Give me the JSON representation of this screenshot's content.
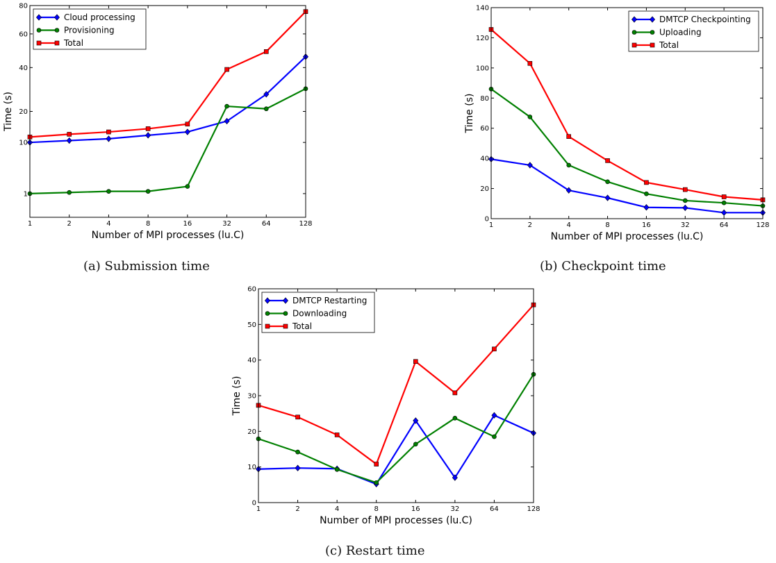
{
  "chart_data": [
    {
      "type": "line",
      "caption": "(a) Submission time",
      "xlabel": "Number of MPI processes (lu.C)",
      "ylabel": "Time (s)",
      "x_ticks": [
        "1",
        "2",
        "4",
        "8",
        "16",
        "32",
        "64",
        "128"
      ],
      "y_ticks": [
        1,
        10,
        20,
        40,
        60,
        80
      ],
      "y_scale": "sqrt",
      "ylim": [
        0,
        80
      ],
      "legend_position": "top-left",
      "series": [
        {
          "name": "Cloud processing",
          "color": "#0000ff",
          "marker": "diamond",
          "values": [
            10.0,
            10.5,
            11.0,
            12.0,
            13.0,
            16.5,
            27.0,
            46.0
          ]
        },
        {
          "name": "Provisioning",
          "color": "#008000",
          "marker": "circle",
          "values": [
            1.0,
            1.1,
            1.2,
            1.2,
            1.7,
            22.0,
            21.0,
            29.5
          ]
        },
        {
          "name": "Total",
          "color": "#ff0000",
          "marker": "square",
          "values": [
            11.5,
            12.3,
            13.0,
            14.0,
            15.5,
            39.0,
            49.0,
            75.5
          ]
        }
      ]
    },
    {
      "type": "line",
      "caption": "(b) Checkpoint time",
      "xlabel": "Number of MPI processes (lu.C)",
      "ylabel": "Time (s)",
      "x_ticks": [
        "1",
        "2",
        "4",
        "8",
        "16",
        "32",
        "64",
        "128"
      ],
      "y_ticks": [
        0,
        20,
        40,
        60,
        80,
        100,
        120,
        140
      ],
      "y_scale": "linear",
      "ylim": [
        0,
        140
      ],
      "legend_position": "top-right",
      "series": [
        {
          "name": "DMTCP Checkpointing",
          "color": "#0000ff",
          "marker": "diamond",
          "values": [
            39.5,
            35.5,
            18.8,
            13.8,
            7.5,
            7.2,
            4.0,
            4.0
          ]
        },
        {
          "name": "Uploading",
          "color": "#008000",
          "marker": "circle",
          "values": [
            86.0,
            67.5,
            35.5,
            24.5,
            16.5,
            12.0,
            10.5,
            8.5
          ]
        },
        {
          "name": "Total",
          "color": "#ff0000",
          "marker": "square",
          "values": [
            125.5,
            103.0,
            54.5,
            38.5,
            24.0,
            19.3,
            14.5,
            12.5
          ]
        }
      ]
    },
    {
      "type": "line",
      "caption": "(c) Restart time",
      "xlabel": "Number of MPI processes (lu.C)",
      "ylabel": "Time (s)",
      "x_ticks": [
        "1",
        "2",
        "4",
        "8",
        "16",
        "32",
        "64",
        "128"
      ],
      "y_ticks": [
        0,
        10,
        20,
        30,
        40,
        50,
        60
      ],
      "y_scale": "linear",
      "ylim": [
        0,
        60
      ],
      "legend_position": "top-left",
      "series": [
        {
          "name": "DMTCP Restarting",
          "color": "#0000ff",
          "marker": "diamond",
          "values": [
            9.4,
            9.7,
            9.5,
            5.2,
            23.0,
            7.0,
            24.5,
            19.5
          ]
        },
        {
          "name": "Downloading",
          "color": "#008000",
          "marker": "circle",
          "values": [
            17.9,
            14.2,
            9.3,
            5.6,
            16.4,
            23.7,
            18.5,
            36.0
          ]
        },
        {
          "name": "Total",
          "color": "#ff0000",
          "marker": "square",
          "values": [
            27.3,
            24.0,
            19.0,
            10.8,
            39.6,
            30.8,
            43.1,
            55.5
          ]
        }
      ]
    }
  ]
}
